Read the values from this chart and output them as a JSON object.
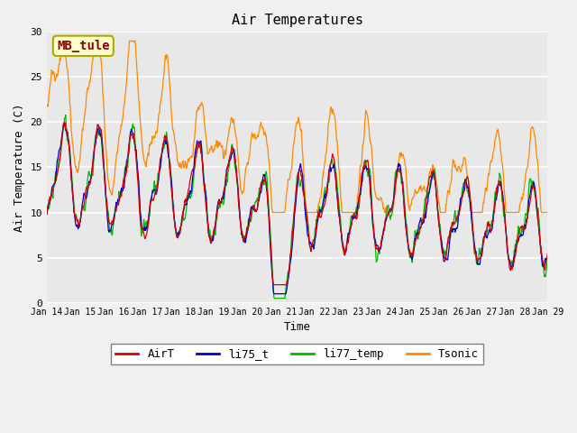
{
  "title": "Air Temperatures",
  "xlabel": "Time",
  "ylabel": "Air Temperature (C)",
  "ylim": [
    0,
    30
  ],
  "yticks": [
    0,
    5,
    10,
    15,
    20,
    25,
    30
  ],
  "fig_bg": "#f0f0f0",
  "ax_bg": "#e8e8e8",
  "legend_label": "MB_tule",
  "legend_bg": "#ffffcc",
  "legend_border": "#aaaa00",
  "legend_text_color": "#8b0000",
  "colors": {
    "AirT": "#dd0000",
    "li75_t": "#0000cc",
    "li77_temp": "#00bb00",
    "Tsonic": "#ff8800"
  },
  "x_tick_labels": [
    "Jan 14",
    "Jan 15",
    "Jan 16",
    "Jan 17",
    "Jan 18",
    "Jan 19",
    "Jan 20",
    "Jan 21",
    "Jan 22",
    "Jan 23",
    "Jan 24",
    "Jan 25",
    "Jan 26",
    "Jan 27",
    "Jan 28",
    "Jan 29"
  ],
  "n_points": 960,
  "figsize": [
    6.4,
    4.8
  ],
  "dpi": 100
}
